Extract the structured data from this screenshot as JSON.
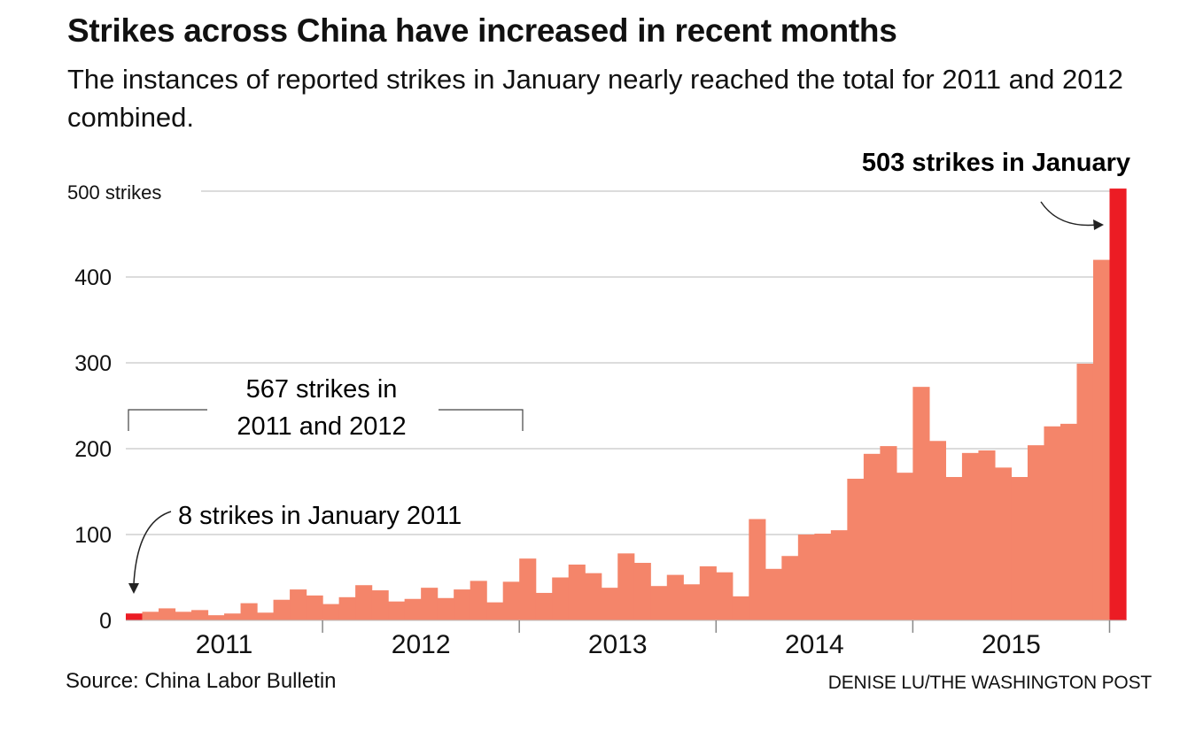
{
  "header": {
    "title": "Strikes across China have increased in recent months",
    "subtitle": "The instances of reported strikes in January nearly reached the total for 2011 and 2012 combined."
  },
  "footer": {
    "source": "Source: China Labor Bulletin",
    "credit": "DENISE LU/THE WASHINGTON POST"
  },
  "colors": {
    "bar": "#f4856a",
    "highlight": "#ec1c24",
    "grid": "#c8c8c8",
    "axis": "#888888",
    "text": "#111111"
  },
  "chart_data": {
    "type": "bar",
    "title": "Strikes across China have increased in recent months",
    "subtitle": "The instances of reported strikes in January nearly reached the total for 2011 and 2012 combined.",
    "xlabel": "",
    "ylabel": "strikes",
    "ylim": [
      0,
      500
    ],
    "yticks": [
      {
        "value": 0,
        "label": "0"
      },
      {
        "value": 100,
        "label": "100"
      },
      {
        "value": 200,
        "label": "200"
      },
      {
        "value": 300,
        "label": "300"
      },
      {
        "value": 400,
        "label": "400"
      },
      {
        "value": 500,
        "label": "500 strikes"
      }
    ],
    "xticks": [
      "2011",
      "2012",
      "2013",
      "2014",
      "2015"
    ],
    "grid": true,
    "start": "2011-01",
    "frequency": "monthly",
    "categories": [
      "2011-01",
      "2011-02",
      "2011-03",
      "2011-04",
      "2011-05",
      "2011-06",
      "2011-07",
      "2011-08",
      "2011-09",
      "2011-10",
      "2011-11",
      "2011-12",
      "2012-01",
      "2012-02",
      "2012-03",
      "2012-04",
      "2012-05",
      "2012-06",
      "2012-07",
      "2012-08",
      "2012-09",
      "2012-10",
      "2012-11",
      "2012-12",
      "2013-01",
      "2013-02",
      "2013-03",
      "2013-04",
      "2013-05",
      "2013-06",
      "2013-07",
      "2013-08",
      "2013-09",
      "2013-10",
      "2013-11",
      "2013-12",
      "2014-01",
      "2014-02",
      "2014-03",
      "2014-04",
      "2014-05",
      "2014-06",
      "2014-07",
      "2014-08",
      "2014-09",
      "2014-10",
      "2014-11",
      "2014-12",
      "2015-01",
      "2015-02",
      "2015-03",
      "2015-04",
      "2015-05",
      "2015-06",
      "2015-07",
      "2015-08",
      "2015-09",
      "2015-10",
      "2015-11",
      "2015-12",
      "2016-01"
    ],
    "values": [
      8,
      10,
      14,
      10,
      12,
      6,
      8,
      20,
      9,
      24,
      36,
      29,
      19,
      27,
      41,
      35,
      22,
      25,
      38,
      26,
      36,
      46,
      21,
      45,
      72,
      32,
      50,
      65,
      55,
      38,
      78,
      67,
      40,
      53,
      42,
      63,
      56,
      28,
      118,
      60,
      75,
      100,
      101,
      105,
      165,
      194,
      203,
      172,
      272,
      209,
      167,
      195,
      198,
      178,
      167,
      204,
      226,
      229,
      299,
      420,
      503
    ],
    "highlighted": [
      "2011-01",
      "2016-01"
    ],
    "annotations": [
      {
        "text": "503 strikes in January",
        "target": "2016-01",
        "bold": true
      },
      {
        "text": "8 strikes in January 2011",
        "target": "2011-01",
        "bold": false
      },
      {
        "text_lines": [
          "567 strikes in",
          "2011 and 2012"
        ],
        "span": [
          "2011-01",
          "2012-12"
        ],
        "bold": false
      }
    ]
  }
}
